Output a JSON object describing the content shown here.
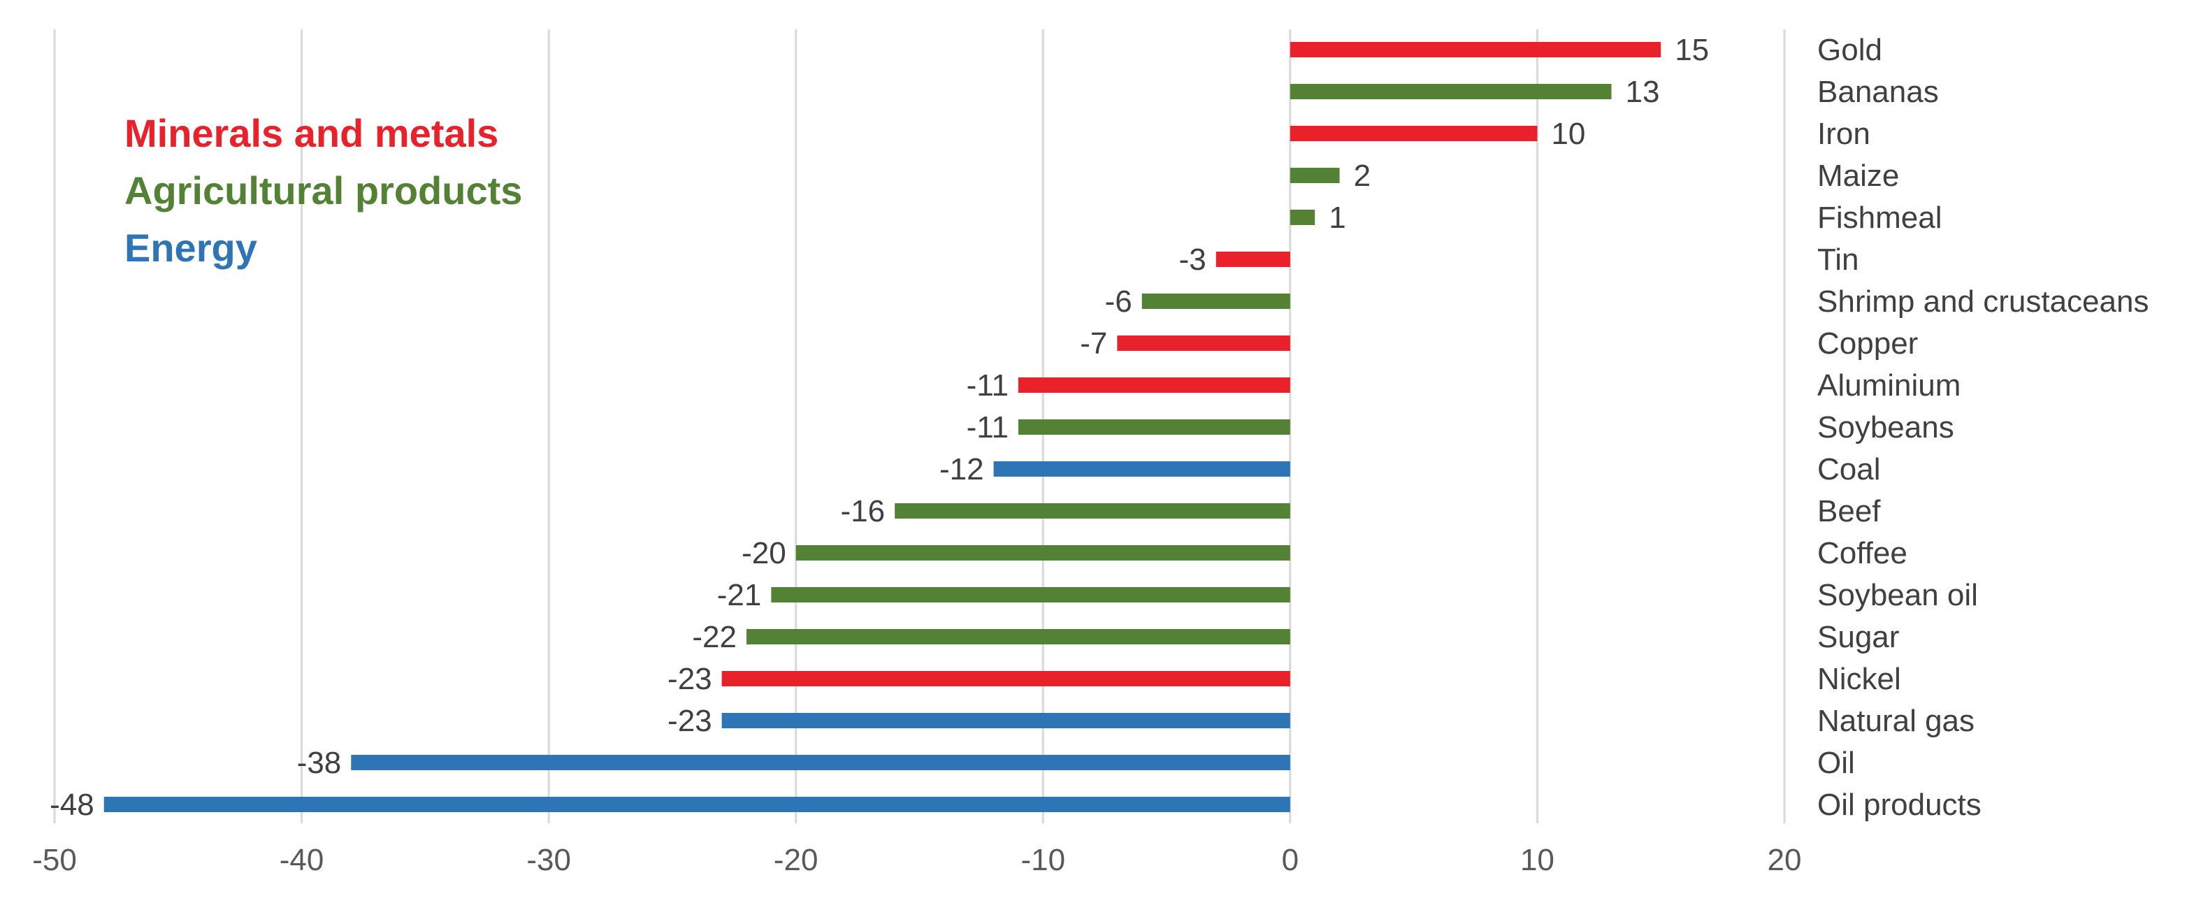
{
  "chart_data": {
    "type": "bar",
    "orientation": "horizontal",
    "title": "",
    "xlabel": "",
    "ylabel": "",
    "xlim": [
      -50,
      20
    ],
    "x_ticks": [
      -50,
      -40,
      -30,
      -20,
      -10,
      0,
      10,
      20
    ],
    "grid": "vertical",
    "colors": {
      "minerals": "#e8212b",
      "agricultural": "#548235",
      "energy": "#2e75b6"
    },
    "legend": {
      "placement": "top-left",
      "items": [
        {
          "label": "Minerals and metals",
          "group": "minerals"
        },
        {
          "label": "Agricultural products",
          "group": "agricultural"
        },
        {
          "label": "Energy",
          "group": "energy"
        }
      ]
    },
    "bars": [
      {
        "category": "Gold",
        "value": 15,
        "label": "15",
        "group": "minerals"
      },
      {
        "category": "Bananas",
        "value": 13,
        "label": "13",
        "group": "agricultural"
      },
      {
        "category": "Iron",
        "value": 10,
        "label": "10",
        "group": "minerals"
      },
      {
        "category": "Maize",
        "value": 2,
        "label": "2",
        "group": "agricultural"
      },
      {
        "category": "Fishmeal",
        "value": 1,
        "label": "1",
        "group": "agricultural"
      },
      {
        "category": "Tin",
        "value": -3,
        "label": "-3",
        "group": "minerals"
      },
      {
        "category": "Shrimp and crustaceans",
        "value": -6,
        "label": "-6",
        "group": "agricultural"
      },
      {
        "category": "Copper",
        "value": -7,
        "label": "-7",
        "group": "minerals"
      },
      {
        "category": "Aluminium",
        "value": -11,
        "label": "-11",
        "group": "minerals"
      },
      {
        "category": "Soybeans",
        "value": -11,
        "label": "-11",
        "group": "agricultural"
      },
      {
        "category": "Coal",
        "value": -12,
        "label": "-12",
        "group": "energy"
      },
      {
        "category": "Beef",
        "value": -16,
        "label": "-16",
        "group": "agricultural"
      },
      {
        "category": "Coffee",
        "value": -20,
        "label": "-20",
        "group": "agricultural"
      },
      {
        "category": "Soybean oil",
        "value": -21,
        "label": "-21",
        "group": "agricultural"
      },
      {
        "category": "Sugar",
        "value": -22,
        "label": "-22",
        "group": "agricultural"
      },
      {
        "category": "Nickel",
        "value": -23,
        "label": "-23",
        "group": "minerals"
      },
      {
        "category": "Natural gas",
        "value": -23,
        "label": "-23",
        "group": "energy"
      },
      {
        "category": "Oil",
        "value": -38,
        "label": "-38",
        "group": "energy"
      },
      {
        "category": "Oil products",
        "value": -48,
        "label": "-48",
        "group": "energy"
      }
    ]
  }
}
